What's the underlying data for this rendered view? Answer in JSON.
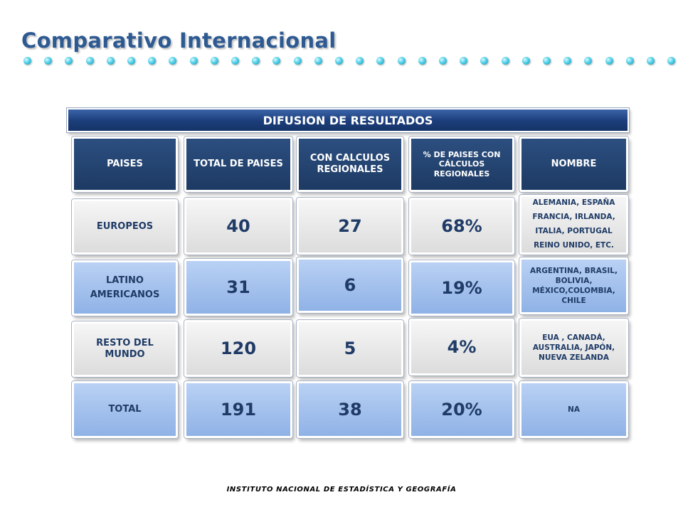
{
  "slide": {
    "title": "Comparativo Internacional",
    "banner": "DIFUSION DE RESULTADOS",
    "footer": "INSTITUTO NACIONAL DE ESTADÍSTICA Y GEOGRAFÍA"
  },
  "table": {
    "headers": [
      "PAISES",
      "TOTAL DE PAISES",
      "CON CALCULOS REGIONALES",
      "% DE PAISES CON CÁLCULOS REGIONALES",
      "NOMBRE"
    ],
    "rows": [
      {
        "region": "EUROPEOS",
        "total": "40",
        "regional": "27",
        "percent": "68%",
        "names": "ALEMANIA, ESPAÑA FRANCIA, IRLANDA, ITALIA, PORTUGAL REINO UNIDO, ETC."
      },
      {
        "region": "LATINO AMERICANOS",
        "total": "31",
        "regional": "6",
        "percent": "19%",
        "names": "ARGENTINA, BRASIL, BOLIVIA, MÉXICO,COLOMBIA, CHILE"
      },
      {
        "region": "RESTO DEL MUNDO",
        "total": "120",
        "regional": "5",
        "percent": "4%",
        "names": "EUA , CANADÁ, AUSTRALIA, JAPÓN, NUEVA ZELANDA"
      },
      {
        "region": "TOTAL",
        "total": "191",
        "regional": "38",
        "percent": "20%",
        "names": "NA"
      }
    ]
  },
  "colors": {
    "header": "#1d3a63",
    "grey_cell": "#e6e6e6",
    "blue_cell": "#9fbcea",
    "title": "#2e5a92",
    "dots": "#53d0e8"
  }
}
